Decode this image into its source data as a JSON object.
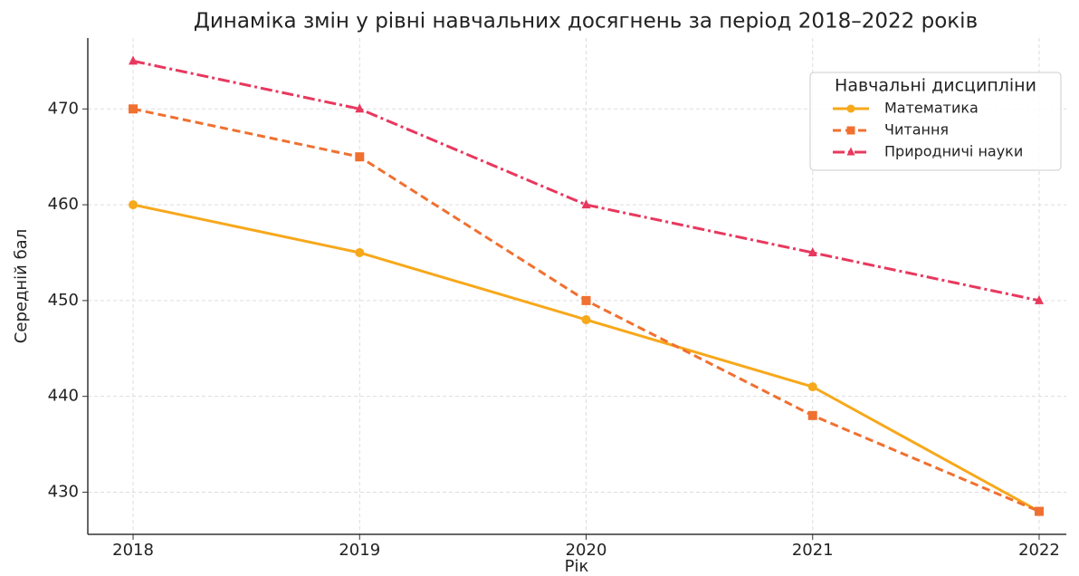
{
  "chart_data": {
    "type": "line",
    "title": "Динаміка змін у рівні навчальних досягнень за період 2018–2022 років",
    "x_label": "Рік",
    "y_label": "Середній бал",
    "x": [
      2018,
      2019,
      2020,
      2021,
      2022
    ],
    "xlim": [
      2017.8,
      2022.12
    ],
    "xticks": [
      2018,
      2019,
      2020,
      2021,
      2022
    ],
    "ylim": [
      425.6,
      477.4
    ],
    "yticks": [
      430,
      440,
      450,
      460,
      470
    ],
    "grid": true,
    "legend_title": "Навчальні дисципліни",
    "legend_position": "upper right",
    "series": [
      {
        "name": "Математика",
        "color": "#f7a81b",
        "linestyle": "solid",
        "marker": "circle",
        "values": [
          460,
          455,
          448,
          441,
          428
        ]
      },
      {
        "name": "Читання",
        "color": "#f07030",
        "linestyle": "dashed",
        "marker": "square",
        "values": [
          470,
          465,
          450,
          438,
          428
        ]
      },
      {
        "name": "Природничі науки",
        "color": "#e8385e",
        "linestyle": "dashdot",
        "marker": "triangle",
        "values": [
          475,
          470,
          460,
          455,
          450
        ]
      }
    ]
  }
}
